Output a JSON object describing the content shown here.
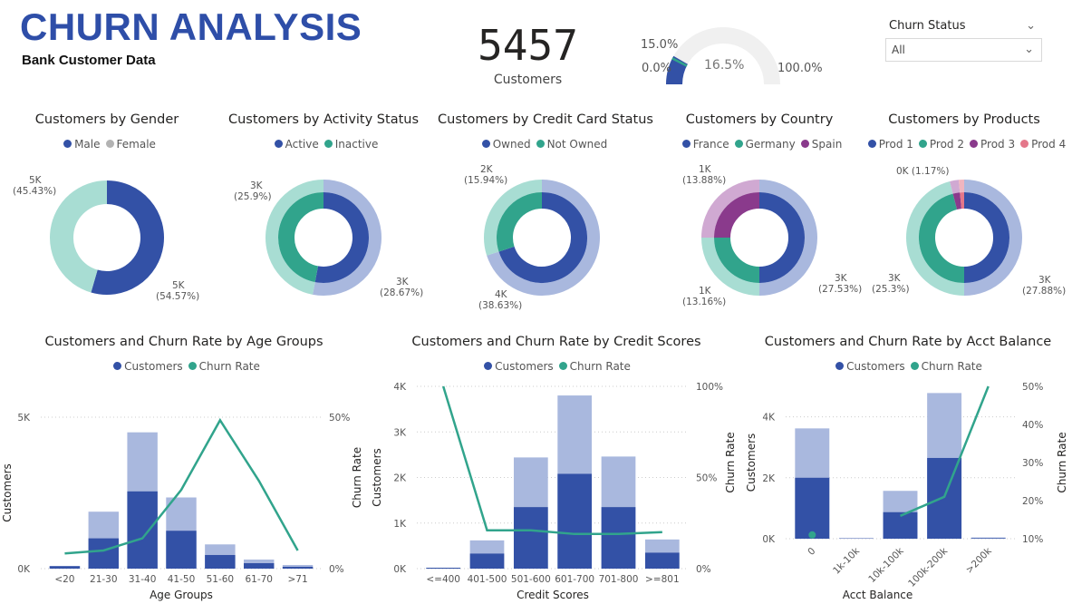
{
  "header": {
    "title": "CHURN ANALYSIS",
    "subtitle": "Bank Customer Data"
  },
  "kpi": {
    "value": "5457",
    "label": "Customers"
  },
  "gauge": {
    "min_label": "0.0%",
    "max_label": "100.0%",
    "target_label": "15.0%",
    "value_label": "16.5%",
    "value": 16.5,
    "target": 15.0
  },
  "slicer": {
    "label": "Churn Status",
    "selected": "All"
  },
  "colors": {
    "blue": "#3351A6",
    "blue_light": "#A9B8DE",
    "teal": "#31A48C",
    "teal_light": "#A8DDD3",
    "purple": "#8A3A8C",
    "purple_light": "#D0A9D2",
    "pink": "#E4778A",
    "gray": "#B3B3B3",
    "title_blue": "#2E4EA8"
  },
  "donuts": [
    {
      "title": "Customers by Gender",
      "legend": [
        {
          "label": "Male",
          "color": "#3351A6"
        },
        {
          "label": "Female",
          "color": "#B3B3B3"
        }
      ],
      "labels": [
        "5K\n(45.43%)",
        "5K\n(54.57%)"
      ]
    },
    {
      "title": "Customers by Activity Status",
      "legend": [
        {
          "label": "Active",
          "color": "#3351A6"
        },
        {
          "label": "Inactive",
          "color": "#31A48C"
        }
      ],
      "labels": [
        "3K\n(25.9%)",
        "3K\n(28.67%)"
      ]
    },
    {
      "title": "Customers by Credit Card Status",
      "legend": [
        {
          "label": "Owned",
          "color": "#3351A6"
        },
        {
          "label": "Not Owned",
          "color": "#31A48C"
        }
      ],
      "labels": [
        "2K\n(15.94%)",
        "4K\n(38.63%)"
      ]
    },
    {
      "title": "Customers by Country",
      "legend": [
        {
          "label": "France",
          "color": "#3351A6"
        },
        {
          "label": "Germany",
          "color": "#31A48C"
        },
        {
          "label": "Spain",
          "color": "#8A3A8C"
        }
      ],
      "labels": [
        "1K\n(13.88%)",
        "1K\n(13.16%)",
        "3K\n(27.53%)"
      ]
    },
    {
      "title": "Customers by Products",
      "legend": [
        {
          "label": "Prod 1",
          "color": "#3351A6"
        },
        {
          "label": "Prod 2",
          "color": "#31A48C"
        },
        {
          "label": "Prod 3",
          "color": "#8A3A8C"
        },
        {
          "label": "Prod 4",
          "color": "#E4778A"
        }
      ],
      "labels": [
        "0K (1.17%)",
        "3K\n(25.3%)",
        "3K\n(27.88%)"
      ]
    }
  ],
  "chart_data": [
    {
      "type": "bar",
      "title": "Customers and Churn Rate by Age Groups",
      "xlabel": "Age Groups",
      "ylabel": "Customers",
      "y2label": "",
      "legend": [
        "Customers",
        "Churn Rate"
      ],
      "categories": [
        "<20",
        "21-30",
        "31-40",
        "41-50",
        "51-60",
        "61-70",
        ">71"
      ],
      "series": [
        {
          "name": "Customers",
          "stack": true,
          "values": [
            80,
            1000,
            2550,
            1250,
            450,
            180,
            60
          ],
          "totals": [
            90,
            1880,
            4500,
            2350,
            800,
            300,
            120
          ]
        },
        {
          "name": "Churn Rate",
          "values": [
            5,
            6,
            10,
            26,
            49,
            29,
            6
          ]
        }
      ],
      "ylim": [
        0,
        5000
      ],
      "y2lim": [
        0,
        50
      ],
      "yticks": [
        "0K",
        "5K"
      ],
      "y2ticks": [
        "0%",
        "50%"
      ]
    },
    {
      "type": "bar",
      "title": "Customers and Churn Rate by Credit Scores",
      "xlabel": "Credit Scores",
      "ylabel": "Customers",
      "y2label": "Churn Rate",
      "legend": [
        "Customers",
        "Churn Rate"
      ],
      "categories": [
        "<=400",
        "401-500",
        "501-600",
        "601-700",
        "701-800",
        ">=801"
      ],
      "series": [
        {
          "name": "Customers",
          "stack": true,
          "values": [
            20,
            330,
            1350,
            2080,
            1350,
            350
          ],
          "totals": [
            20,
            620,
            2440,
            3800,
            2460,
            640
          ]
        },
        {
          "name": "Churn Rate",
          "values": [
            100,
            21,
            21,
            19,
            19,
            20
          ]
        }
      ],
      "ylim": [
        0,
        4000
      ],
      "y2lim": [
        0,
        100
      ],
      "yticks": [
        "0K",
        "1K",
        "2K",
        "3K",
        "4K"
      ],
      "y2ticks": [
        "0%",
        "50%",
        "100%"
      ]
    },
    {
      "type": "bar",
      "title": "Customers and Churn Rate by Acct Balance",
      "xlabel": "Acct Balance",
      "ylabel": "Churn Rate",
      "y2label": "Churn Rate",
      "ylabel2": "Customers",
      "legend": [
        "Customers",
        "Churn Rate"
      ],
      "categories": [
        "0",
        "1k-10k",
        "10k-100k",
        "100k-200k",
        ">200k"
      ],
      "series": [
        {
          "name": "Customers",
          "stack": true,
          "values": [
            2000,
            10,
            870,
            2650,
            20
          ],
          "totals": [
            3620,
            20,
            1570,
            4780,
            40
          ]
        },
        {
          "name": "Churn Rate",
          "values": [
            11,
            null,
            16,
            21,
            50
          ]
        }
      ],
      "ylim": [
        0,
        5000
      ],
      "y2lim": [
        10,
        50
      ],
      "yticks": [
        "0K",
        "2K",
        "4K"
      ],
      "y2ticks": [
        "10%",
        "20%",
        "30%",
        "40%",
        "50%"
      ]
    }
  ]
}
